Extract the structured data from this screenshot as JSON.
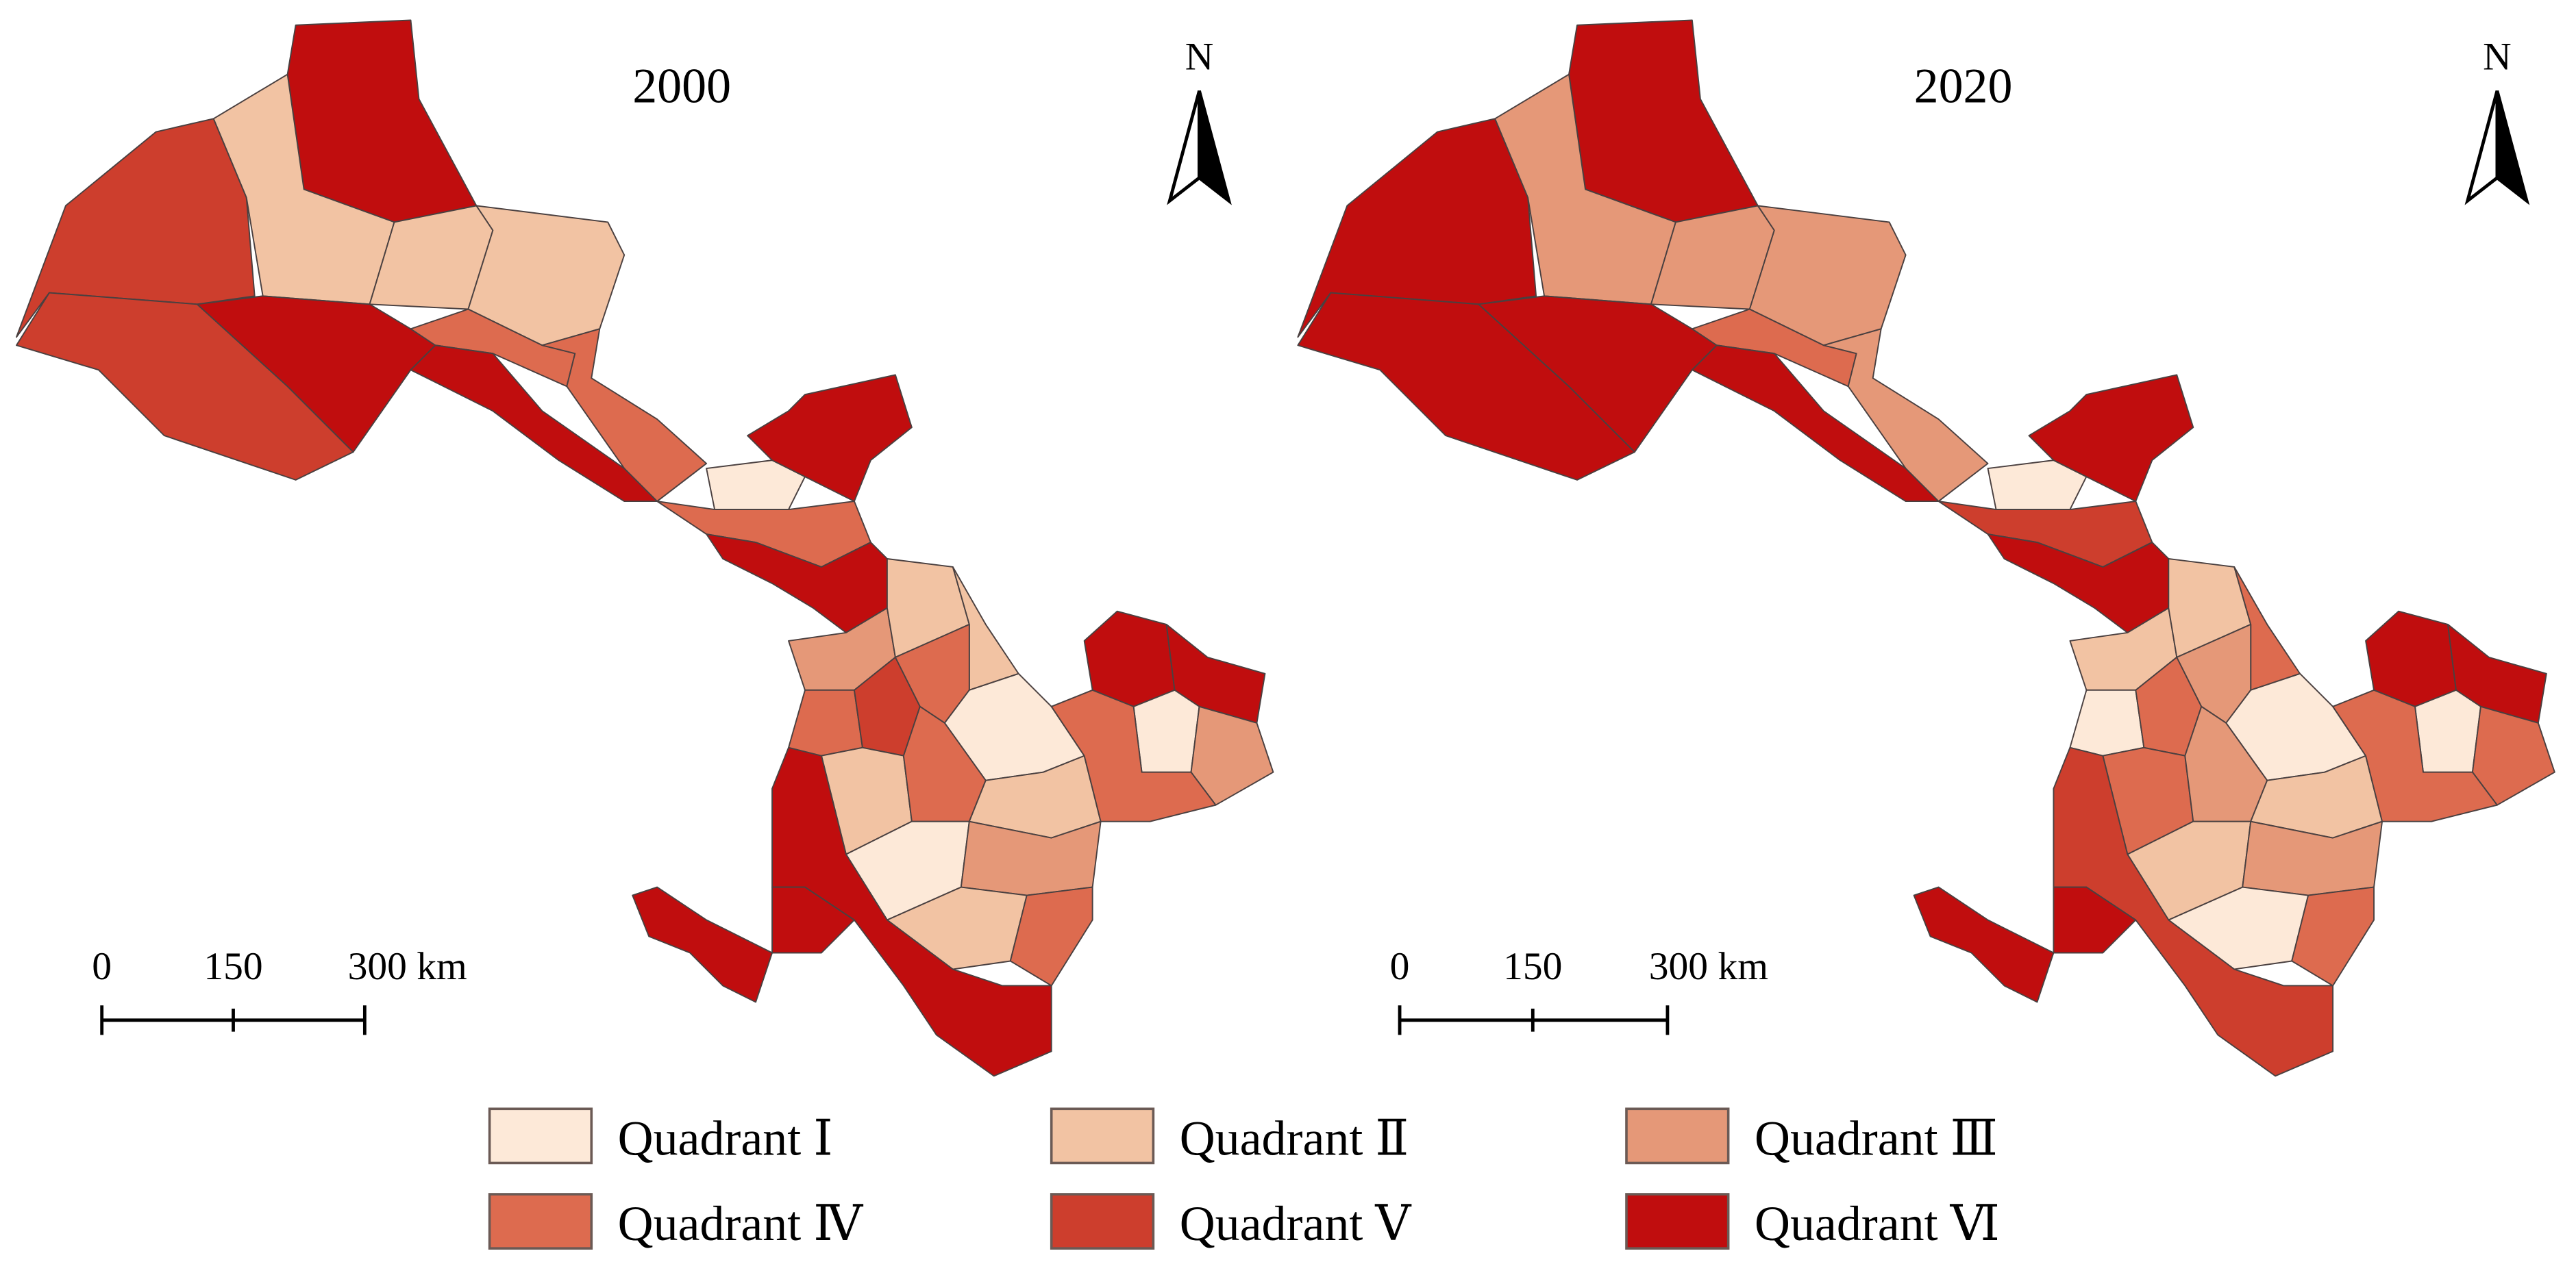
{
  "maps": [
    {
      "title": "2000",
      "north_label": "N",
      "scale": {
        "ticks": [
          "0",
          "150",
          "300 km"
        ]
      },
      "region_classes": [
        "V",
        "V",
        "VI",
        "II",
        "II",
        "II",
        "VI",
        "IV",
        "VI",
        "IV",
        "I",
        "VI",
        "IV",
        "VI",
        "III",
        "II",
        "II",
        "IV",
        "V",
        "IV",
        "I",
        "II",
        "IV",
        "II",
        "I",
        "III",
        "II",
        "IV",
        "VI",
        "VI",
        "I",
        "III",
        "IV",
        "VI",
        "VI",
        "VI"
      ]
    },
    {
      "title": "2020",
      "north_label": "N",
      "scale": {
        "ticks": [
          "0",
          "150",
          "300 km"
        ]
      },
      "region_classes": [
        "VI",
        "VI",
        "VI",
        "III",
        "III",
        "III",
        "VI",
        "IV",
        "VI",
        "III",
        "I",
        "VI",
        "V",
        "VI",
        "II",
        "II",
        "IV",
        "I",
        "IV",
        "III",
        "I",
        "IV",
        "III",
        "II",
        "II",
        "III",
        "I",
        "IV",
        "VI",
        "VI",
        "I",
        "IV",
        "IV",
        "V",
        "VI",
        "VI"
      ]
    }
  ],
  "legend": [
    {
      "key": "I",
      "label": "Quadrant Ⅰ",
      "color": "#fde9d8"
    },
    {
      "key": "II",
      "label": "Quadrant Ⅱ",
      "color": "#f2c3a3"
    },
    {
      "key": "III",
      "label": "Quadrant Ⅲ",
      "color": "#e59878"
    },
    {
      "key": "IV",
      "label": "Quadrant Ⅳ",
      "color": "#dd6b4f"
    },
    {
      "key": "V",
      "label": "Quadrant Ⅴ",
      "color": "#cd3e2d"
    },
    {
      "key": "VI",
      "label": "Quadrant Ⅵ",
      "color": "#c00d0e"
    }
  ]
}
